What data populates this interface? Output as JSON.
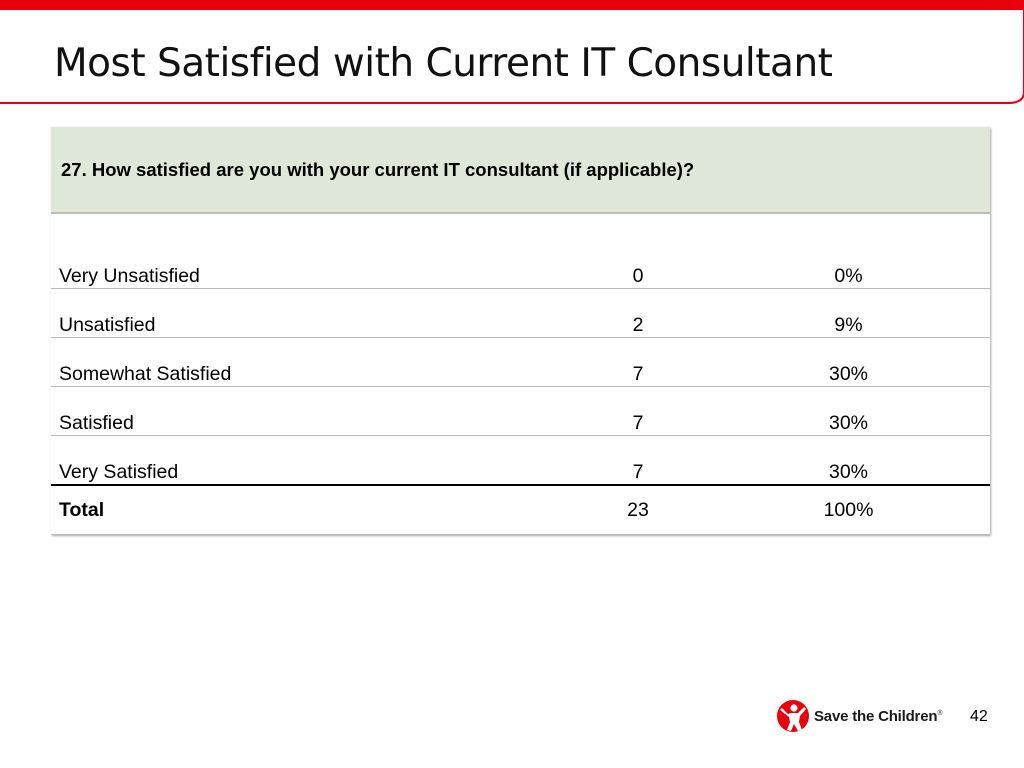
{
  "slide": {
    "title": "Most Satisfied with Current IT Consultant",
    "page_number": "42",
    "accent_color": "#e8000d"
  },
  "table": {
    "question": "27. How satisfied are you with your current IT consultant (if applicable)?",
    "header_bg": "#dfe8d8",
    "rows": [
      {
        "label": "Very Unsatisfied",
        "count": "0",
        "percent": "0%"
      },
      {
        "label": "Unsatisfied",
        "count": "2",
        "percent": "9%"
      },
      {
        "label": "Somewhat Satisfied",
        "count": "7",
        "percent": "30%"
      },
      {
        "label": "Satisfied",
        "count": "7",
        "percent": "30%"
      },
      {
        "label": "Very Satisfied",
        "count": "7",
        "percent": "30%"
      }
    ],
    "total": {
      "label": "Total",
      "count": "23",
      "percent": "100%"
    }
  },
  "logo": {
    "text": "Save the Children",
    "icon": "save-the-children-logo-icon"
  }
}
